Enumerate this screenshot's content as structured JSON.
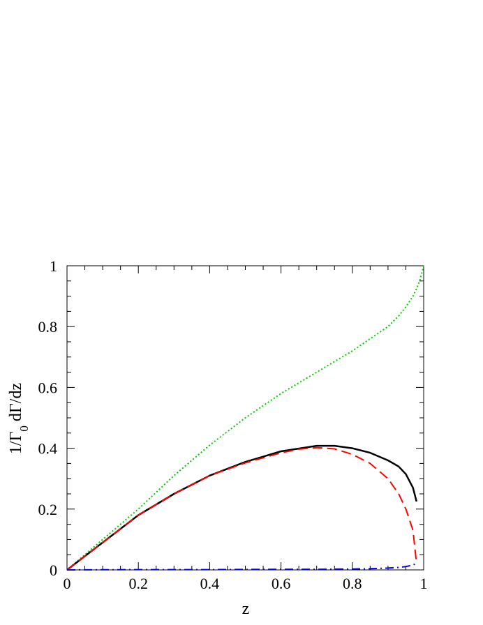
{
  "chart_data": {
    "type": "line",
    "xlabel": "z",
    "ylabel": "1/Γ",
    "ylabel_sub": "0",
    "ylabel_tail": " dΓ/dz",
    "xlim": [
      0,
      1
    ],
    "ylim": [
      0,
      1
    ],
    "xticks": [
      0,
      0.2,
      0.4,
      0.6,
      0.8,
      1
    ],
    "xtick_labels": [
      "0",
      "0.2",
      "0.4",
      "0.6",
      "0.8",
      "1"
    ],
    "yticks": [
      0,
      0.2,
      0.4,
      0.6,
      0.8,
      1
    ],
    "ytick_labels": [
      "0",
      "0.2",
      "0.4",
      "0.6",
      "0.8",
      "1"
    ],
    "minor_per_major": 4,
    "grid": false,
    "series": [
      {
        "color": "#00cc00",
        "style": "dotted",
        "x": [
          0,
          0.1,
          0.2,
          0.3,
          0.4,
          0.5,
          0.6,
          0.7,
          0.8,
          0.85,
          0.9,
          0.93,
          0.95,
          0.97,
          0.98,
          0.99,
          1.0
        ],
        "y": [
          0,
          0.1,
          0.2,
          0.31,
          0.41,
          0.5,
          0.58,
          0.65,
          0.72,
          0.76,
          0.8,
          0.835,
          0.865,
          0.9,
          0.925,
          0.955,
          1.0
        ]
      },
      {
        "color": "#000000",
        "style": "solid",
        "x": [
          0,
          0.1,
          0.2,
          0.3,
          0.4,
          0.5,
          0.6,
          0.7,
          0.75,
          0.8,
          0.85,
          0.9,
          0.93,
          0.95,
          0.97,
          0.98
        ],
        "y": [
          0,
          0.09,
          0.18,
          0.25,
          0.31,
          0.355,
          0.39,
          0.408,
          0.408,
          0.4,
          0.385,
          0.36,
          0.34,
          0.315,
          0.27,
          0.225
        ]
      },
      {
        "color": "#ff0000",
        "style": "dashed",
        "x": [
          0,
          0.1,
          0.2,
          0.3,
          0.4,
          0.5,
          0.6,
          0.65,
          0.7,
          0.75,
          0.8,
          0.85,
          0.9,
          0.93,
          0.95,
          0.97,
          0.98
        ],
        "y": [
          0,
          0.09,
          0.18,
          0.25,
          0.31,
          0.352,
          0.385,
          0.397,
          0.402,
          0.398,
          0.38,
          0.35,
          0.3,
          0.25,
          0.2,
          0.13,
          0.02
        ]
      },
      {
        "color": "#0000ff",
        "style": "dashdot",
        "x": [
          0,
          0.2,
          0.4,
          0.6,
          0.7,
          0.8,
          0.85,
          0.9,
          0.93,
          0.95,
          0.97,
          0.98
        ],
        "y": [
          0,
          0.001,
          0.001,
          0.002,
          0.002,
          0.003,
          0.004,
          0.006,
          0.008,
          0.011,
          0.016,
          0.022
        ]
      }
    ]
  }
}
